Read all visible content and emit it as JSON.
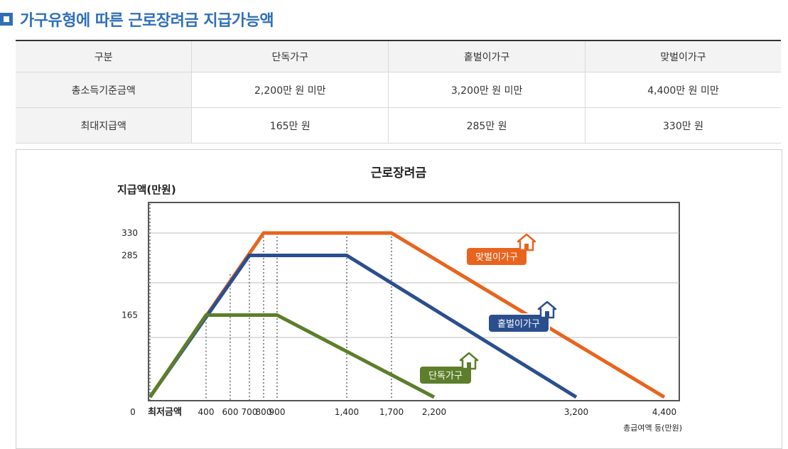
{
  "heading": {
    "title": "가구유형에 따른 근로장려금 지급가능액"
  },
  "table": {
    "headers": [
      "구분",
      "단독가구",
      "홑벌이가구",
      "맞벌이가구"
    ],
    "rows": [
      {
        "label": "총소득기준금액",
        "cells": [
          "2,200만 원 미만",
          "3,200만 원 미만",
          "4,400만 원 미만"
        ]
      },
      {
        "label": "최대지급액",
        "cells": [
          "165만 원",
          "285만 원",
          "330만 원"
        ]
      }
    ]
  },
  "chart_data": {
    "type": "line",
    "title": "근로장려금",
    "ylabel": "지급액(만원)",
    "xlabel": "총급여액 등(만원)",
    "origin_label": "0",
    "xtick_label_min": "최저금액",
    "x_scale_breakpoints": [
      0,
      400,
      600,
      700,
      800,
      900,
      1400,
      1700,
      2200,
      3200,
      4400
    ],
    "xticks": [
      {
        "value": 400,
        "label": "400"
      },
      {
        "value": 600,
        "label": "600"
      },
      {
        "value": 700,
        "label": "700"
      },
      {
        "value": 800,
        "label": "800"
      },
      {
        "value": 900,
        "label": "900"
      },
      {
        "value": 1400,
        "label": "1,400"
      },
      {
        "value": 1700,
        "label": "1,700"
      },
      {
        "value": 2200,
        "label": "2,200"
      },
      {
        "value": 3200,
        "label": "3,200"
      },
      {
        "value": 4400,
        "label": "4,400"
      }
    ],
    "yticks": [
      {
        "value": 165,
        "label": "165"
      },
      {
        "value": 285,
        "label": "285"
      },
      {
        "value": 330,
        "label": "330"
      }
    ],
    "ylim": [
      0,
      390
    ],
    "gridlines_y": [
      120,
      230,
      330
    ],
    "series": [
      {
        "name": "맞벌이가구",
        "color": "#e8641e",
        "points": [
          [
            0,
            0
          ],
          [
            800,
            330
          ],
          [
            1700,
            330
          ],
          [
            4400,
            0
          ]
        ]
      },
      {
        "name": "홑벌이가구",
        "color": "#2b4f8e",
        "points": [
          [
            0,
            0
          ],
          [
            700,
            285
          ],
          [
            1400,
            285
          ],
          [
            3200,
            0
          ]
        ]
      },
      {
        "name": "단독가구",
        "color": "#5d7e2a",
        "points": [
          [
            0,
            0
          ],
          [
            400,
            165
          ],
          [
            900,
            165
          ],
          [
            2200,
            0
          ]
        ]
      }
    ]
  }
}
